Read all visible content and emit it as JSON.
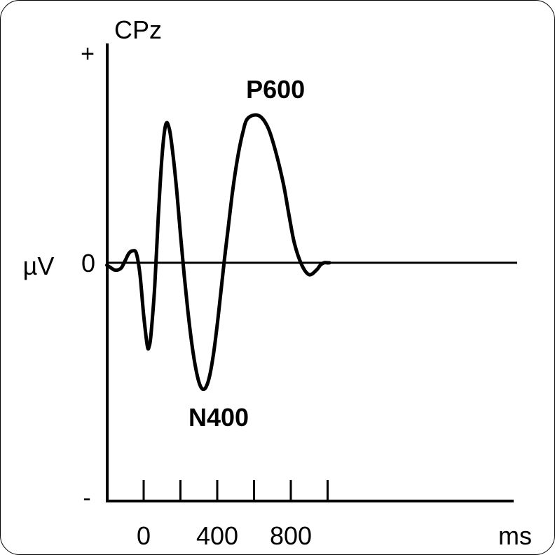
{
  "chart_data": {
    "type": "line",
    "channel": "CPz",
    "ylabel": "µV",
    "xunit": "ms",
    "y_ticks": {
      "plus": "+",
      "zero": "0",
      "minus": "-"
    },
    "x_ticks": [
      0,
      200,
      400,
      600,
      800,
      1000
    ],
    "x_tick_labels": [
      {
        "x": 0,
        "label": "0"
      },
      {
        "x": 400,
        "label": "400"
      },
      {
        "x": 800,
        "label": "800"
      }
    ],
    "xlim": [
      -200,
      1010
    ],
    "ylim": [
      -1,
      1
    ],
    "annotations": [
      {
        "text": "N400",
        "x": 400,
        "y": -0.52
      },
      {
        "text": "P600",
        "x": 770,
        "y": 0.62
      }
    ],
    "series": [
      {
        "x": [
          -200,
          -180,
          -160,
          -140,
          -120,
          -100,
          -80,
          -60,
          -40,
          -20,
          0,
          20,
          30,
          40,
          60,
          80,
          100,
          120,
          140,
          160,
          180,
          200,
          220,
          240,
          260,
          280,
          300,
          320,
          340,
          360,
          380,
          400,
          420,
          440,
          460,
          480,
          500,
          520,
          540,
          560,
          600,
          640,
          680,
          720,
          760,
          790,
          820,
          860,
          900,
          940,
          960,
          980,
          1000,
          1010
        ],
        "y": [
          -0.01,
          -0.02,
          -0.03,
          -0.03,
          -0.02,
          0.01,
          0.04,
          0.05,
          0.04,
          -0.05,
          -0.22,
          -0.35,
          -0.35,
          -0.3,
          -0.1,
          0.2,
          0.45,
          0.58,
          0.56,
          0.45,
          0.3,
          0.12,
          -0.05,
          -0.2,
          -0.33,
          -0.43,
          -0.5,
          -0.53,
          -0.52,
          -0.47,
          -0.38,
          -0.26,
          -0.12,
          0.02,
          0.15,
          0.28,
          0.39,
          0.48,
          0.55,
          0.6,
          0.62,
          0.61,
          0.56,
          0.46,
          0.33,
          0.2,
          0.08,
          -0.01,
          -0.05,
          -0.03,
          -0.01,
          0.0,
          0.0,
          0.0
        ]
      }
    ]
  }
}
